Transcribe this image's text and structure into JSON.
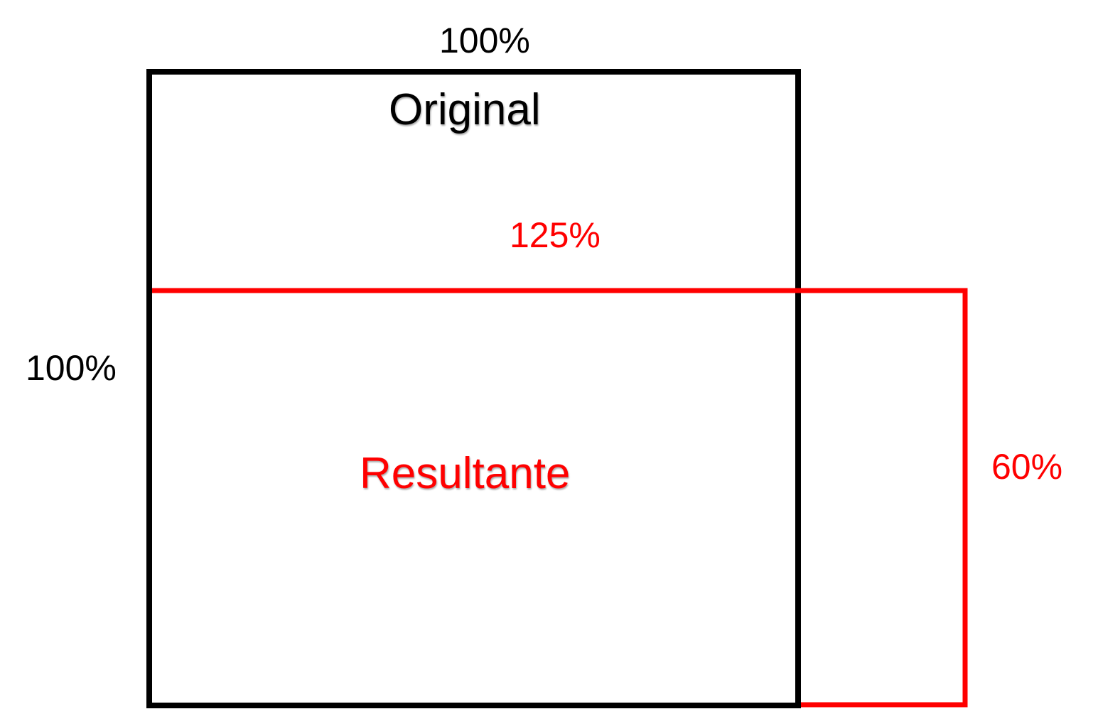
{
  "colors": {
    "original": "#000000",
    "resultant": "#ff0000",
    "background": "#ffffff"
  },
  "original": {
    "title": "Original",
    "width_label": "100%",
    "height_label": "100%",
    "width_percent": 100,
    "height_percent": 100
  },
  "resultant": {
    "title": "Resultante",
    "width_label": "125%",
    "height_label": "60%",
    "width_percent": 125,
    "height_percent": 60
  }
}
